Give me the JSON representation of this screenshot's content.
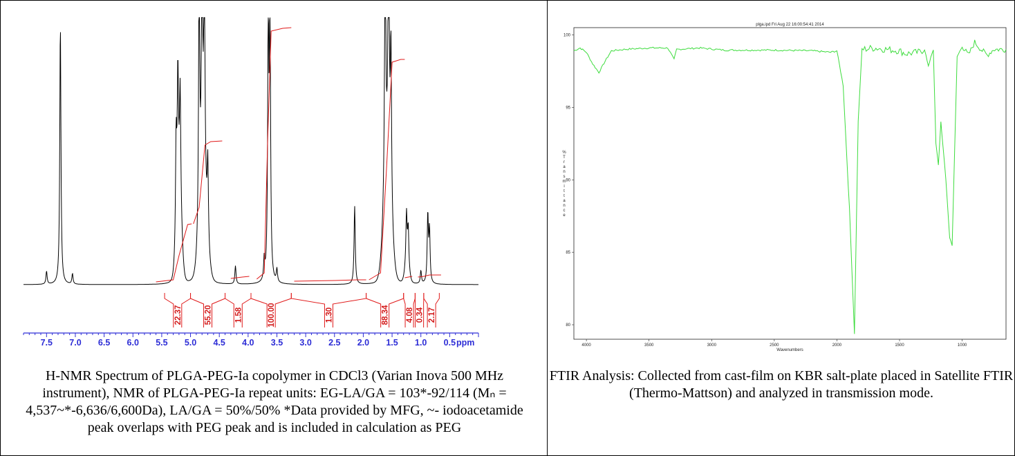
{
  "panels": {
    "nmr": {
      "caption": "H-NMR Spectrum of PLGA-PEG-Ia copolymer in CDCl3 (Varian Inova 500 MHz instrument), NMR of PLGA-PEG-Ia repeat units: EG-LA/GA = 103*-92/114 (Mₙ = 4,537~*-6,636/6,600Da), LA/GA = 50%/50% *Data provided by MFG, ~- iodoacetamide peak overlaps with PEG peak and is included in calculation as PEG"
    },
    "ftir": {
      "caption": "FTIR Analysis: Collected from cast-film on KBR salt-plate placed in Satellite FTIR (Thermo-Mattson) and analyzed in transmission mode."
    }
  },
  "chart_data": [
    {
      "type": "line",
      "name_shown": "",
      "x_unit": "ppm",
      "xlim": [
        7.9,
        0.0
      ],
      "x_reversed": true,
      "x_ticks": [
        7.5,
        7.0,
        6.5,
        6.0,
        5.5,
        5.0,
        4.5,
        4.0,
        3.5,
        3.0,
        2.5,
        2.0,
        1.5,
        1.0,
        0.5
      ],
      "x_tick_labels": [
        "7.5",
        "7.0",
        "6.5",
        "6.0",
        "5.5",
        "5.0",
        "4.5",
        "4.0",
        "3.5",
        "3.0",
        "2.5",
        "2.0",
        "1.5",
        "1.0",
        "0.5"
      ],
      "xlabel": "ppm",
      "peaks": [
        {
          "x": 7.26,
          "height": 1.0
        },
        {
          "x": 7.05,
          "height": 0.04
        },
        {
          "x": 7.5,
          "height": 0.05
        },
        {
          "x": 5.22,
          "height": 0.48
        },
        {
          "x": 5.18,
          "height": 0.42
        },
        {
          "x": 5.25,
          "height": 0.38
        },
        {
          "x": 4.85,
          "height": 1.0
        },
        {
          "x": 4.8,
          "height": 1.0
        },
        {
          "x": 4.76,
          "height": 0.9
        },
        {
          "x": 4.7,
          "height": 0.3
        },
        {
          "x": 4.22,
          "height": 0.07
        },
        {
          "x": 3.72,
          "height": 0.08
        },
        {
          "x": 3.65,
          "height": 1.0
        },
        {
          "x": 3.62,
          "height": 1.0
        },
        {
          "x": 3.5,
          "height": 0.05
        },
        {
          "x": 2.15,
          "height": 0.3
        },
        {
          "x": 1.62,
          "height": 1.0
        },
        {
          "x": 1.56,
          "height": 1.0
        },
        {
          "x": 1.52,
          "height": 0.6
        },
        {
          "x": 1.25,
          "height": 0.2
        },
        {
          "x": 1.22,
          "height": 0.15
        },
        {
          "x": 0.88,
          "height": 0.26
        },
        {
          "x": 0.85,
          "height": 0.2
        },
        {
          "x": 1.0,
          "height": 0.05
        }
      ],
      "integrals": [
        {
          "from": 5.45,
          "to": 5.0,
          "value": "22.37"
        },
        {
          "from": 5.0,
          "to": 4.4,
          "value": "55.20"
        },
        {
          "from": 4.4,
          "to": 3.95,
          "value": "1.58"
        },
        {
          "from": 3.95,
          "to": 3.25,
          "value": "100.00"
        },
        {
          "from": 3.25,
          "to": 1.95,
          "value": "1.30"
        },
        {
          "from": 1.95,
          "to": 1.3,
          "value": "88.34"
        },
        {
          "from": 1.3,
          "to": 1.1,
          "value": "4.08"
        },
        {
          "from": 1.1,
          "to": 0.95,
          "value": "0.34"
        },
        {
          "from": 0.95,
          "to": 0.68,
          "value": "2.17"
        }
      ],
      "colors": {
        "spectrum": "#000000",
        "integral": "#e01818",
        "axis": "#2d2dd6"
      }
    },
    {
      "type": "line",
      "title": "plga.ipd  Fri Aug 22 16:00:54:41 2014",
      "xlabel": "Wavenumbers",
      "ylabel": "%Transmittance",
      "xlim": [
        4100,
        650
      ],
      "x_reversed": true,
      "ylim": [
        79,
        100.5
      ],
      "x_ticks": [
        4000,
        3500,
        3000,
        2500,
        2000,
        1500,
        1000
      ],
      "y_ticks": [
        80,
        85,
        90,
        95,
        100
      ],
      "series": [
        {
          "color": "#3ddc3d",
          "points": [
            [
              4100,
              98.9
            ],
            [
              4050,
              99.1
            ],
            [
              4000,
              98.8
            ],
            [
              3950,
              98.0
            ],
            [
              3900,
              97.4
            ],
            [
              3850,
              98.2
            ],
            [
              3800,
              98.9
            ],
            [
              3700,
              99.0
            ],
            [
              3500,
              99.1
            ],
            [
              3350,
              99.1
            ],
            [
              3300,
              98.3
            ],
            [
              3280,
              99.0
            ],
            [
              3100,
              99.1
            ],
            [
              2900,
              98.95
            ],
            [
              2500,
              98.95
            ],
            [
              2200,
              98.9
            ],
            [
              2050,
              98.8
            ],
            [
              2000,
              98.9
            ],
            [
              1950,
              96.5
            ],
            [
              1900,
              88.0
            ],
            [
              1860,
              79.4
            ],
            [
              1830,
              94.0
            ],
            [
              1800,
              99.0
            ],
            [
              1700,
              99.1
            ],
            [
              1500,
              98.9
            ],
            [
              1450,
              98.7
            ],
            [
              1350,
              98.8
            ],
            [
              1300,
              99.0
            ],
            [
              1270,
              97.8
            ],
            [
              1250,
              98.5
            ],
            [
              1230,
              99.0
            ],
            [
              1210,
              92.5
            ],
            [
              1190,
              91.0
            ],
            [
              1170,
              94.0
            ],
            [
              1150,
              92.0
            ],
            [
              1130,
              90.0
            ],
            [
              1100,
              86.0
            ],
            [
              1080,
              85.5
            ],
            [
              1060,
              92.0
            ],
            [
              1040,
              98.5
            ],
            [
              1000,
              99.2
            ],
            [
              950,
              98.6
            ],
            [
              900,
              99.5
            ],
            [
              850,
              99.0
            ],
            [
              800,
              98.6
            ],
            [
              750,
              99.0
            ],
            [
              700,
              99.0
            ],
            [
              650,
              99.0
            ]
          ]
        }
      ]
    }
  ]
}
